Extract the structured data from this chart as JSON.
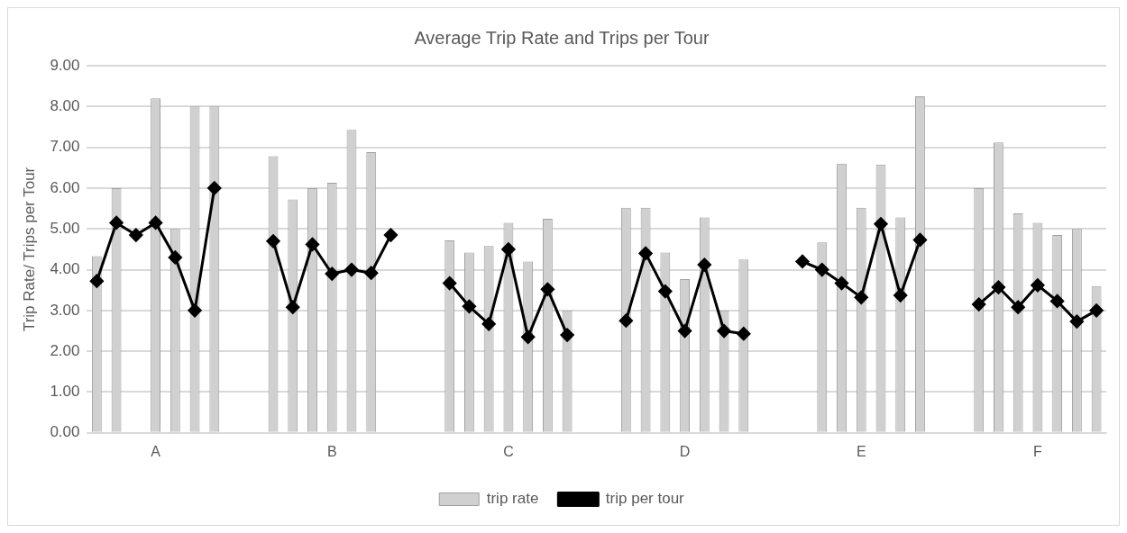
{
  "chart_data": {
    "type": "bar",
    "title": "Average Trip Rate and Trips per Tour",
    "ylabel": "Trip Rate/ Trips per Tour",
    "categories": [
      null,
      null,
      null,
      "A",
      null,
      null,
      null,
      null,
      null,
      null,
      null,
      null,
      "B",
      null,
      null,
      null,
      null,
      null,
      null,
      null,
      null,
      "C",
      null,
      null,
      null,
      null,
      null,
      null,
      null,
      null,
      "D",
      null,
      null,
      null,
      null,
      null,
      null,
      null,
      null,
      "E",
      null,
      null,
      null,
      null,
      null,
      null,
      null,
      null,
      "F",
      null,
      null,
      null
    ],
    "series": [
      {
        "name": "trip rate",
        "color": "#d0d0d0",
        "values": [
          4.33,
          6.0,
          null,
          8.2,
          5.0,
          8.0,
          8.0,
          null,
          null,
          6.78,
          5.72,
          6.0,
          6.13,
          7.43,
          6.88,
          null,
          null,
          null,
          4.72,
          4.42,
          4.58,
          5.15,
          4.2,
          5.25,
          3.0,
          null,
          null,
          5.52,
          5.52,
          4.42,
          3.77,
          5.28,
          3.0,
          4.25,
          null,
          null,
          null,
          4.67,
          6.6,
          5.52,
          6.58,
          5.28,
          8.25,
          null,
          null,
          6.0,
          7.12,
          5.38,
          5.15,
          4.85,
          5.0,
          3.6
        ]
      },
      {
        "name": "trip per tour",
        "type": "line",
        "color": "#000000",
        "marker": "diamond",
        "values": [
          3.72,
          5.15,
          4.85,
          5.15,
          4.3,
          3.0,
          6.0,
          null,
          null,
          4.7,
          3.08,
          4.62,
          3.9,
          4.0,
          3.92,
          4.85,
          null,
          null,
          3.67,
          3.1,
          2.67,
          4.5,
          2.35,
          3.52,
          2.4,
          null,
          null,
          2.75,
          4.4,
          3.47,
          2.5,
          4.12,
          2.5,
          2.43,
          null,
          null,
          4.2,
          4.0,
          3.67,
          3.32,
          5.12,
          3.37,
          4.73,
          null,
          null,
          3.15,
          3.57,
          3.08,
          3.62,
          3.23,
          2.73,
          3.0
        ]
      }
    ],
    "ylim": [
      0,
      9
    ],
    "yticks": [
      {
        "value": 0,
        "label": "0.00"
      },
      {
        "value": 1,
        "label": "1.00"
      },
      {
        "value": 2,
        "label": "2.00"
      },
      {
        "value": 3,
        "label": "3.00"
      },
      {
        "value": 4,
        "label": "4.00"
      },
      {
        "value": 5,
        "label": "5.00"
      },
      {
        "value": 6,
        "label": "6.00"
      },
      {
        "value": 7,
        "label": "7.00"
      },
      {
        "value": 8,
        "label": "8.00"
      },
      {
        "value": 9,
        "label": "9.00"
      }
    ],
    "grid": "y",
    "legend": "bottom"
  }
}
